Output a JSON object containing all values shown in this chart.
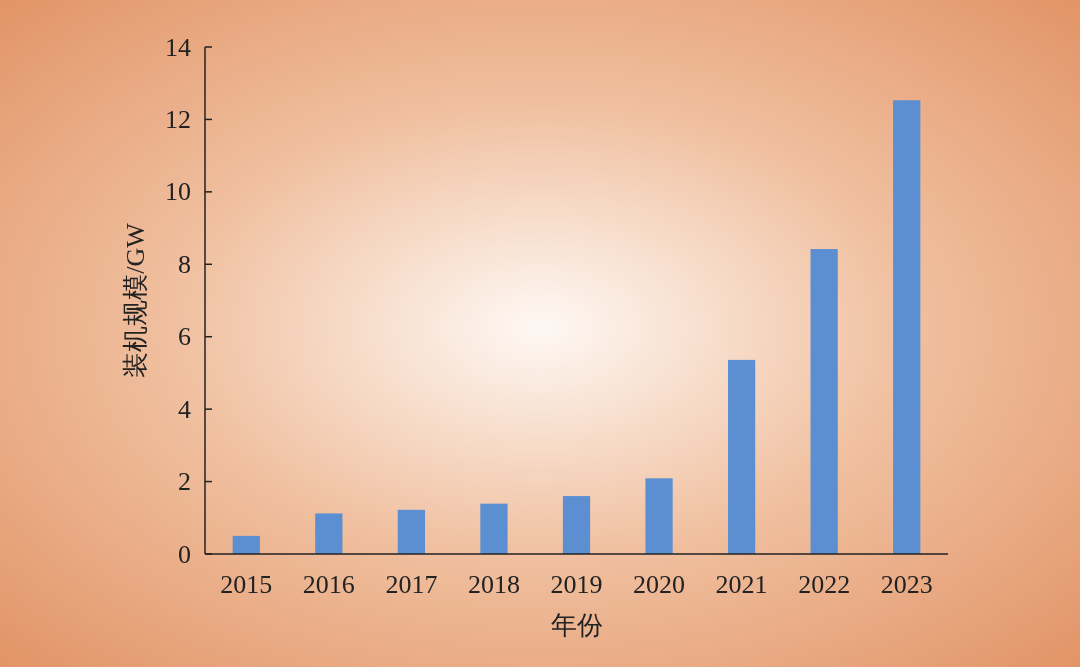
{
  "chart_data": {
    "type": "bar",
    "xlabel": "年份",
    "ylabel": "装机规模/GW",
    "categories": [
      "2015",
      "2016",
      "2017",
      "2018",
      "2019",
      "2020",
      "2021",
      "2022",
      "2023"
    ],
    "series": [
      {
        "color": "#5b8fd1",
        "values": [
          0.5,
          1.12,
          1.22,
          1.39,
          1.6,
          2.09,
          5.36,
          8.42,
          12.53
        ]
      }
    ],
    "ylim": [
      0,
      14
    ],
    "yticks": [
      0,
      2,
      4,
      6,
      8,
      10,
      12,
      14
    ],
    "grid": false
  }
}
